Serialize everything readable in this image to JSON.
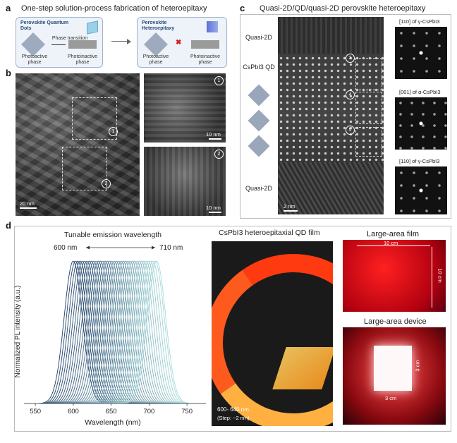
{
  "panel_a": {
    "label": "a",
    "title": "One-step solution-process fabrication of heteroepitaxy",
    "box1_title": "Perovskite Quantum Dots",
    "box1_arrow": "Phase transition",
    "box1_left": "Photoactive phase",
    "box1_right": "Photoinactive phase",
    "box2_title": "Perovskite Heteroepitaxy",
    "box2_left": "Photoactive phase",
    "box2_right": "Photoinactive phase"
  },
  "panel_b": {
    "label": "b",
    "scale_main": "20 nm",
    "scale_inset1": "10 nm",
    "scale_inset2": "10 nm",
    "marker1": "1",
    "marker2": "2"
  },
  "panel_c": {
    "label": "c",
    "title": "Quasi-2D/QD/quasi-2D perovskite heteroepitaxy",
    "layer_top": "Quasi-2D",
    "layer_mid": "CsPbI3 QD",
    "layer_bottom": "Quasi-2D",
    "scale": "2 nm",
    "fft1": "[110] of γ-CsPbI3",
    "fft2": "[001] of α-CsPbI3",
    "fft3": "[110] of γ-CsPbI3",
    "markers": [
      "3",
      "4",
      "5"
    ]
  },
  "panel_d": {
    "label": "d",
    "chart_title": "Tunable emission wavelength",
    "range_left": "600 nm",
    "range_right": "710 nm",
    "film_title": "CsPbI3 heteroepitaxial QD film",
    "film_note1": "600- 640 nm",
    "film_note2": "(Step: ~2 nm)",
    "large_film_title": "Large-area film",
    "large_film_w": "10 cm",
    "large_film_h": "10 cm",
    "device_title": "Large-area device",
    "device_w": "3 cm",
    "device_h": "3 cm"
  },
  "chart_data": {
    "type": "line",
    "title": "",
    "xlabel": "Wavelength (nm)",
    "ylabel": "Normalized PL intensity (a.u.)",
    "xlim": [
      535,
      775
    ],
    "ylim": [
      0,
      1.05
    ],
    "xticks": [
      550,
      600,
      650,
      700,
      750
    ],
    "peak_wavelengths": [
      600,
      603,
      606,
      609,
      612,
      615,
      618,
      621,
      624,
      627,
      630,
      633,
      636,
      639,
      642,
      645,
      648,
      651,
      654,
      657,
      660,
      663,
      666,
      669,
      672,
      675,
      678,
      681,
      684,
      687,
      690,
      693,
      696,
      699,
      702,
      705,
      708,
      710
    ],
    "series_color_start": "#1f3d66",
    "series_color_end": "#a9dcdc",
    "grid": false,
    "legend": "none"
  }
}
